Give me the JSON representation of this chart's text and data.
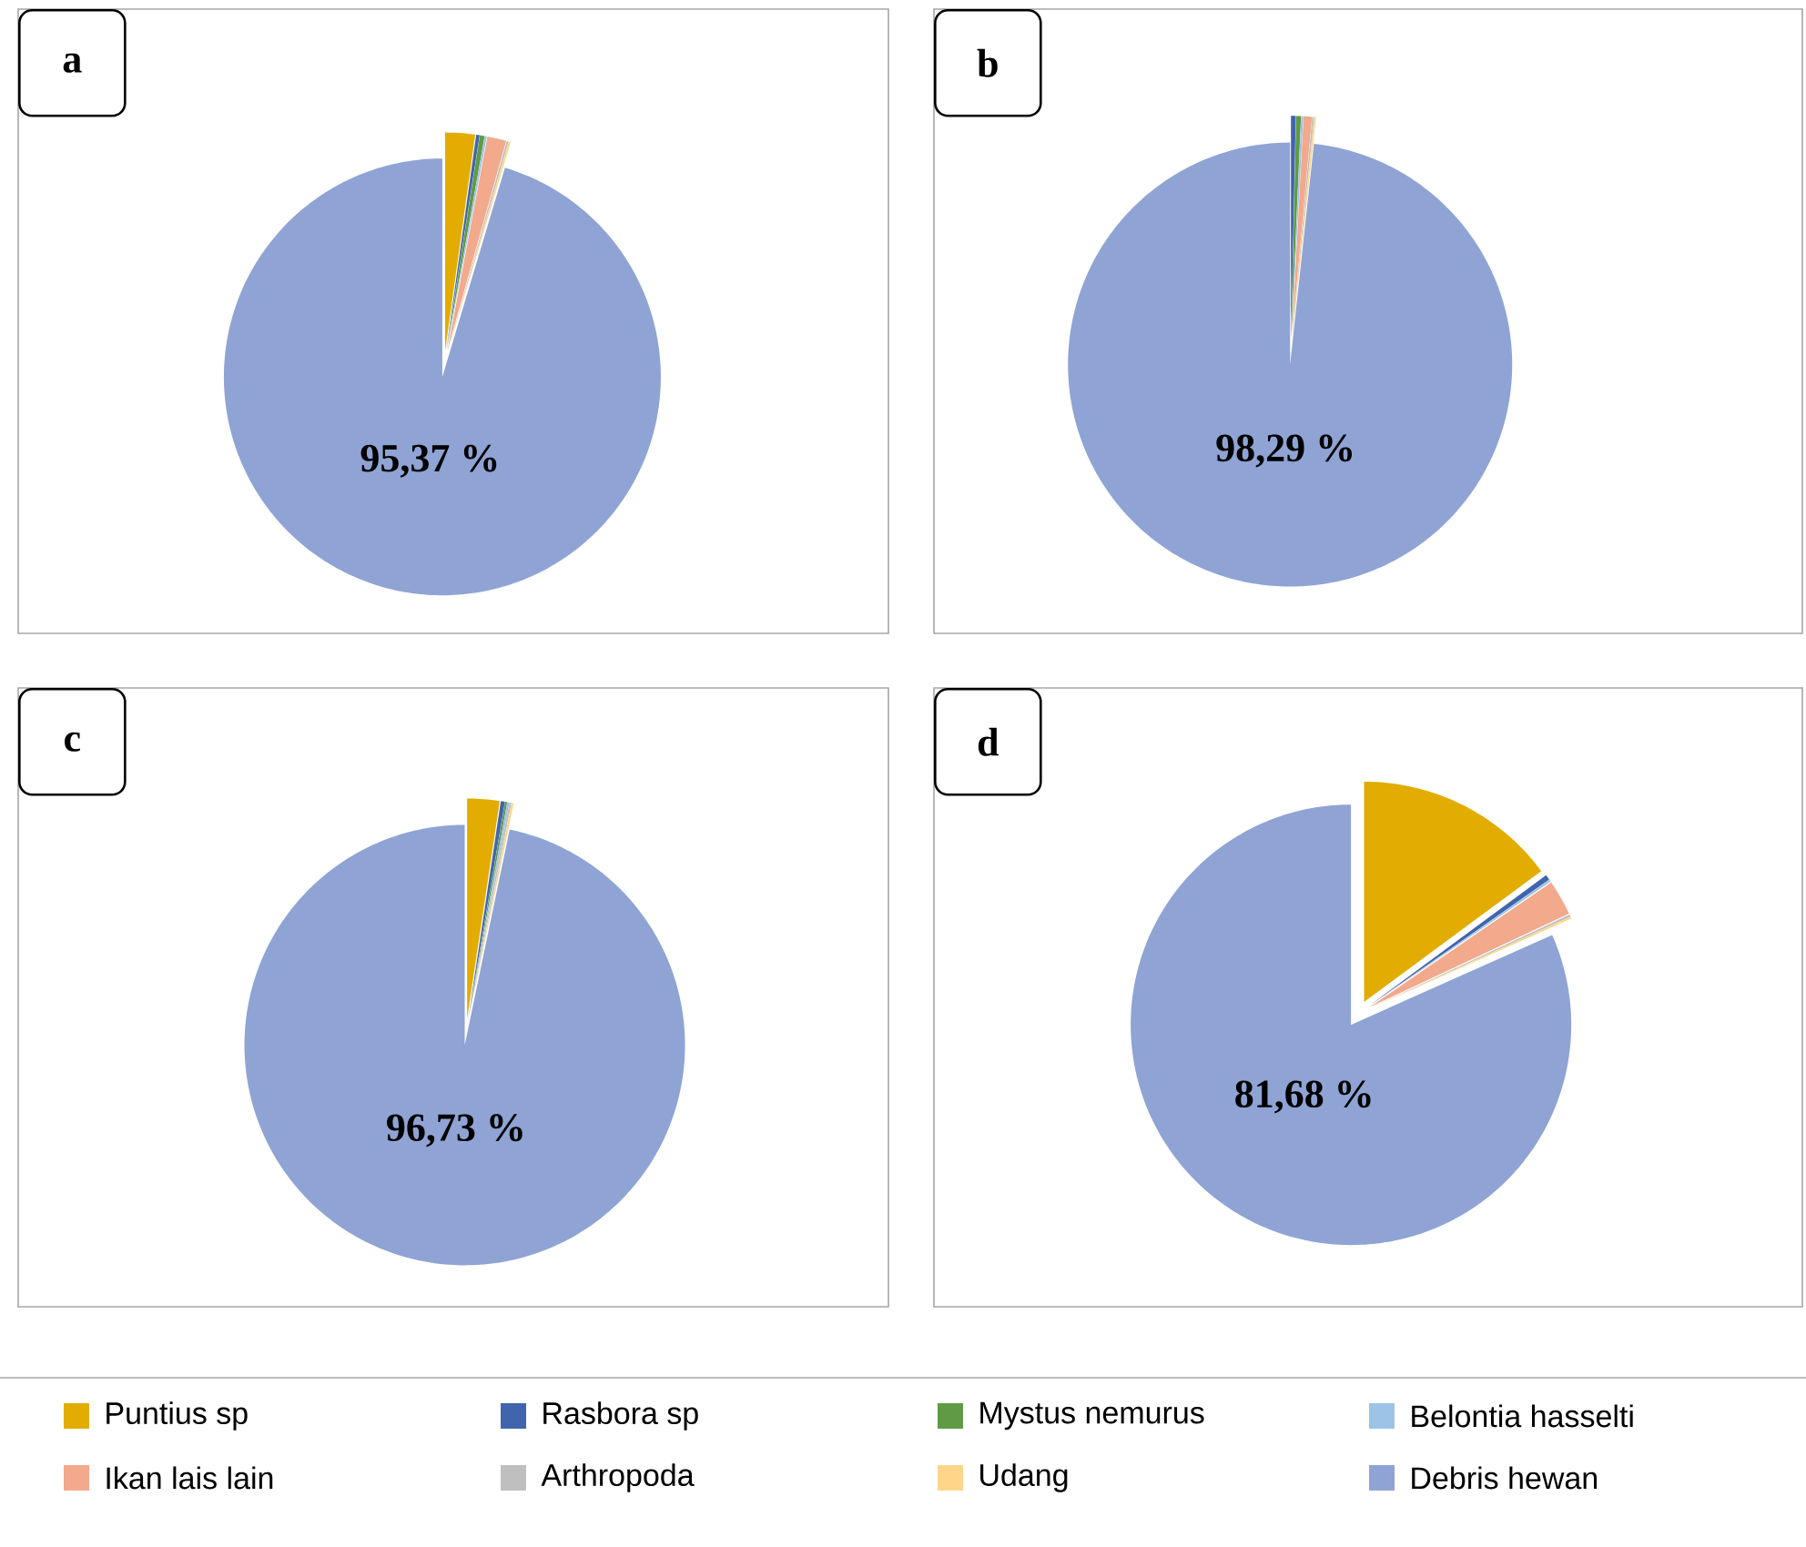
{
  "chart_data": [
    {
      "type": "pie",
      "title": "a",
      "legend": "bottom",
      "categories": [
        "Puntius sp",
        "Rasbora sp",
        "Mystus nemurus",
        "Belontia hasselti",
        "Ikan lais lain",
        "Arthropoda",
        "Udang",
        "Debris hewan"
      ],
      "values": [
        2.2,
        0.25,
        0.35,
        0.15,
        1.4,
        0.14,
        0.14,
        95.37
      ],
      "colors": [
        "#e2ac00",
        "#4165ad",
        "#5f9a45",
        "#9dc3e6",
        "#f2a98c",
        "#bfbfbf",
        "#ffd58a",
        "#8fa4d4"
      ],
      "value_labels": [
        null,
        null,
        null,
        null,
        null,
        null,
        null,
        "95,37 %"
      ]
    },
    {
      "type": "pie",
      "title": "b",
      "categories": [
        null,
        null,
        null,
        null,
        null,
        null,
        null,
        null
      ],
      "values": [
        0,
        0.35,
        0.35,
        0.15,
        0.6,
        0.13,
        0.13,
        98.29
      ],
      "colors": [
        "#e2ac00",
        "#4165ad",
        "#5f9a45",
        "#9dc3e6",
        "#f2a98c",
        "#bfbfbf",
        "#ffd58a",
        "#8fa4d4"
      ],
      "value_labels": [
        null,
        null,
        null,
        null,
        null,
        null,
        null,
        "98,29 %"
      ]
    },
    {
      "type": "pie",
      "title": "c",
      "categories": [
        null,
        null,
        null,
        null,
        null,
        null,
        null,
        null
      ],
      "values": [
        2.37,
        0.3,
        0.15,
        0.15,
        0,
        0.15,
        0.15,
        96.73
      ],
      "colors": [
        "#e2ac00",
        "#4165ad",
        "#5f9a45",
        "#9dc3e6",
        "#f2a98c",
        "#bfbfbf",
        "#ffd58a",
        "#8fa4d4"
      ],
      "value_labels": [
        null,
        null,
        null,
        null,
        null,
        null,
        null,
        "96,73 %"
      ]
    },
    {
      "type": "pie",
      "title": "d",
      "categories": [
        null,
        null,
        null,
        null,
        null,
        null,
        null,
        null
      ],
      "values": [
        14.87,
        0.4,
        0,
        0.15,
        2.6,
        0.15,
        0.15,
        81.68
      ],
      "colors": [
        "#e2ac00",
        "#4165ad",
        "#5f9a45",
        "#9dc3e6",
        "#f2a98c",
        "#bfbfbf",
        "#ffd58a",
        "#8fa4d4"
      ],
      "value_labels": [
        null,
        null,
        null,
        null,
        null,
        null,
        null,
        "81,68 %"
      ]
    }
  ]
}
